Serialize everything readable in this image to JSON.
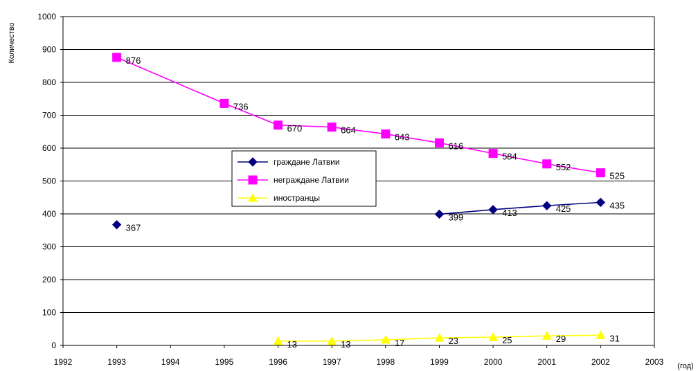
{
  "chart_data": {
    "type": "line",
    "ylabel": "Количество",
    "xlabel": "(год)",
    "xlim": [
      1992,
      2003
    ],
    "ylim": [
      0,
      1000
    ],
    "x_ticks": [
      1992,
      1993,
      1994,
      1995,
      1996,
      1997,
      1998,
      1999,
      2000,
      2001,
      2002,
      2003
    ],
    "y_ticks": [
      0,
      100,
      200,
      300,
      400,
      500,
      600,
      700,
      800,
      900,
      1000
    ],
    "grid": "horizontal",
    "legend_position": "center-left",
    "series": [
      {
        "name": "граждане Латвии",
        "color": "#000080",
        "marker": "diamond",
        "points": [
          {
            "x": 1993,
            "y": 367,
            "connected": false
          },
          {
            "x": 1999,
            "y": 399
          },
          {
            "x": 2000,
            "y": 413
          },
          {
            "x": 2001,
            "y": 425
          },
          {
            "x": 2002,
            "y": 435
          }
        ]
      },
      {
        "name": "неграждане Латвии",
        "color": "#ff00ff",
        "marker": "square",
        "points": [
          {
            "x": 1993,
            "y": 876
          },
          {
            "x": 1995,
            "y": 736
          },
          {
            "x": 1996,
            "y": 670
          },
          {
            "x": 1997,
            "y": 664
          },
          {
            "x": 1998,
            "y": 643
          },
          {
            "x": 1999,
            "y": 616
          },
          {
            "x": 2000,
            "y": 584
          },
          {
            "x": 2001,
            "y": 552
          },
          {
            "x": 2002,
            "y": 525
          }
        ]
      },
      {
        "name": "иностранцы",
        "color": "#ffff00",
        "marker": "triangle",
        "points": [
          {
            "x": 1996,
            "y": 13
          },
          {
            "x": 1997,
            "y": 13
          },
          {
            "x": 1998,
            "y": 17
          },
          {
            "x": 1999,
            "y": 23
          },
          {
            "x": 2000,
            "y": 25
          },
          {
            "x": 2001,
            "y": 29
          },
          {
            "x": 2002,
            "y": 31
          }
        ]
      }
    ]
  }
}
